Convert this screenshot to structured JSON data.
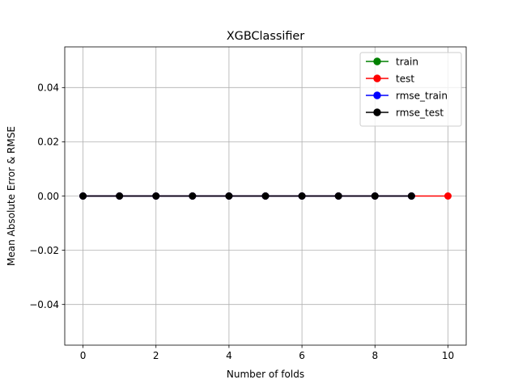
{
  "chart_data": {
    "type": "line",
    "title": "XGBClassifier",
    "xlabel": "Number of folds",
    "ylabel": "Mean Absolute Error & RMSE",
    "xlim": [
      -0.5,
      10.5
    ],
    "ylim": [
      -0.055,
      0.055
    ],
    "xticks": [
      0,
      2,
      4,
      6,
      8,
      10
    ],
    "yticks": [
      -0.04,
      -0.02,
      0.0,
      0.02,
      0.04
    ],
    "xtick_labels": [
      "0",
      "2",
      "4",
      "6",
      "8",
      "10"
    ],
    "ytick_labels": [
      "−0.04",
      "−0.02",
      "0.00",
      "0.02",
      "0.04"
    ],
    "grid": true,
    "legend_position": "top-right",
    "series": [
      {
        "name": "train",
        "color": "#008000",
        "marker": "circle",
        "x": [
          0,
          1,
          2,
          3,
          4,
          5,
          6,
          7,
          8,
          9
        ],
        "values": [
          0,
          0,
          0,
          0,
          0,
          0,
          0,
          0,
          0,
          0
        ]
      },
      {
        "name": "test",
        "color": "#ff0000",
        "marker": "circle",
        "x": [
          0,
          1,
          2,
          3,
          4,
          5,
          6,
          7,
          8,
          9,
          10
        ],
        "values": [
          0,
          0,
          0,
          0,
          0,
          0,
          0,
          0,
          0,
          0,
          0
        ]
      },
      {
        "name": "rmse_train",
        "color": "#0000ff",
        "marker": "circle",
        "x": [
          0,
          1,
          2,
          3,
          4,
          5,
          6,
          7,
          8,
          9
        ],
        "values": [
          0,
          0,
          0,
          0,
          0,
          0,
          0,
          0,
          0,
          0
        ]
      },
      {
        "name": "rmse_test",
        "color": "#000000",
        "marker": "circle",
        "x": [
          0,
          1,
          2,
          3,
          4,
          5,
          6,
          7,
          8,
          9
        ],
        "values": [
          0,
          0,
          0,
          0,
          0,
          0,
          0,
          0,
          0,
          0
        ]
      }
    ]
  }
}
